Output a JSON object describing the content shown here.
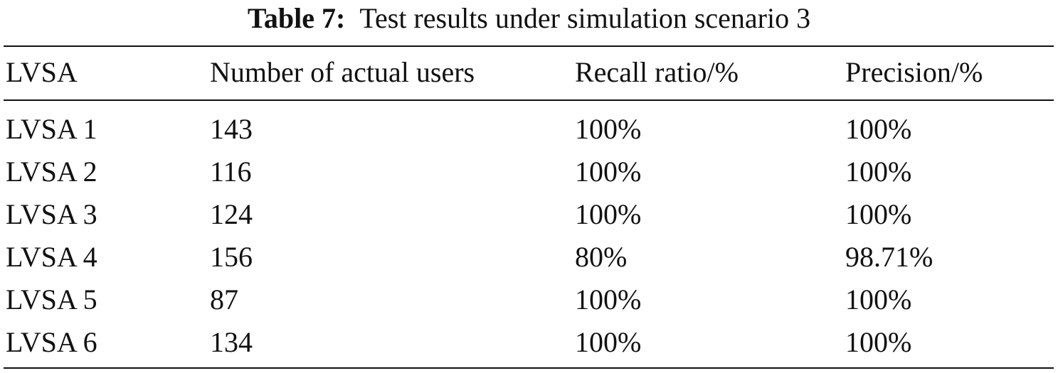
{
  "caption": {
    "label": "Table 7:",
    "text": "Test results under simulation scenario 3"
  },
  "table": {
    "headers": [
      "LVSA",
      "Number of actual users",
      "Recall ratio/%",
      "Precision/%"
    ],
    "rows": [
      [
        "LVSA 1",
        "143",
        "100%",
        "100%"
      ],
      [
        "LVSA 2",
        "116",
        "100%",
        "100%"
      ],
      [
        "LVSA 3",
        "124",
        "100%",
        "100%"
      ],
      [
        "LVSA 4",
        "156",
        "80%",
        "98.71%"
      ],
      [
        "LVSA 5",
        "87",
        "100%",
        "100%"
      ],
      [
        "LVSA 6",
        "134",
        "100%",
        "100%"
      ]
    ]
  }
}
